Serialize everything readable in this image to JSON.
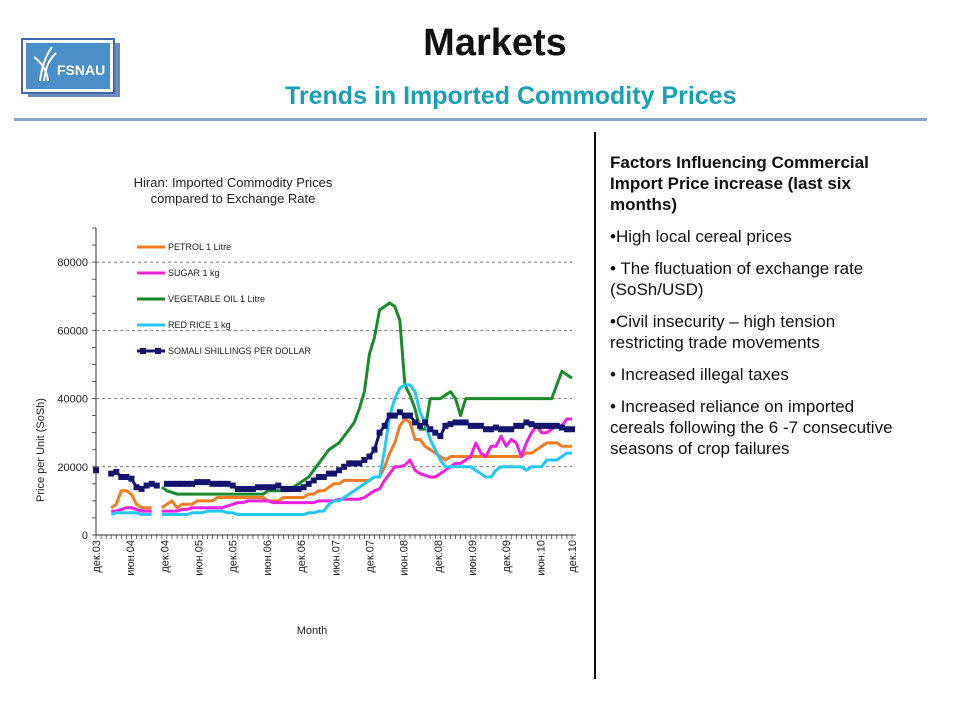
{
  "header": {
    "logo_text": "FSNAU",
    "title": "Markets",
    "subtitle": "Trends in Imported Commodity Prices"
  },
  "sidebar": {
    "heading": "Factors Influencing Commercial Import Price increase (last six months)",
    "factors": [
      "•High local cereal prices",
      "• The fluctuation of exchange rate (SoSh/USD)",
      "•Civil insecurity – high tension restricting trade movements",
      "• Increased  illegal taxes",
      "• Increased reliance on imported cereals following the 6 -7 consecutive seasons of crop failures"
    ]
  },
  "chart_data": {
    "type": "line",
    "title": "Hiran: Imported Commodity Prices compared to Exchange Rate",
    "title_lines": [
      "Hiran: Imported Commodity Prices",
      "compared to Exchange Rate"
    ],
    "xlabel": "Month",
    "ylabel": "Price per Unit (SoSh)",
    "ylim": [
      0,
      90000
    ],
    "yticks": [
      0,
      20000,
      40000,
      60000,
      80000
    ],
    "x_tick_labels": [
      "дек.03",
      "июн.04",
      "дек.04",
      "июн.05",
      "дек.05",
      "июн.06",
      "дек.06",
      "июн.07",
      "дек.07",
      "июн.08",
      "дек.08",
      "июн.09",
      "дек.09",
      "июн.10",
      "дек.10"
    ],
    "grid": "horizontal",
    "legend_position": "upper-left",
    "series": [
      {
        "name": "PETROL 1 Litre",
        "color": "#f07c24",
        "marker": "none",
        "values": [
          null,
          null,
          null,
          8000,
          9000,
          13000,
          13000,
          12000,
          9000,
          8000,
          8000,
          8000,
          null,
          8000,
          9000,
          10000,
          8000,
          9000,
          9000,
          9000,
          10000,
          10000,
          10000,
          10000,
          11000,
          11000,
          11000,
          11000,
          11000,
          11000,
          11000,
          11000,
          11000,
          11000,
          10000,
          10000,
          10000,
          11000,
          11000,
          11000,
          11000,
          11000,
          12000,
          12000,
          13000,
          13000,
          14000,
          15000,
          15000,
          16000,
          16000,
          16000,
          16000,
          16000,
          16000,
          17000,
          17000,
          20000,
          24000,
          27000,
          32000,
          34000,
          33000,
          28000,
          28000,
          26000,
          25000,
          24000,
          23000,
          22000,
          23000,
          23000,
          23000,
          23000,
          23000,
          23000,
          23000,
          23000,
          23000,
          23000,
          23000,
          23000,
          23000,
          23000,
          23000,
          24000,
          24000,
          25000,
          26000,
          27000,
          27000,
          27000,
          26000,
          26000,
          26000
        ]
      },
      {
        "name": "SUGAR 1 kg",
        "color": "#ee22dd",
        "marker": "none",
        "values": [
          null,
          null,
          null,
          7000,
          7000,
          7500,
          8000,
          8000,
          7500,
          7000,
          7000,
          7000,
          null,
          7000,
          7000,
          7000,
          7000,
          7500,
          7500,
          8000,
          8000,
          8000,
          8000,
          8000,
          8000,
          8000,
          8500,
          9000,
          9500,
          9500,
          10000,
          10000,
          10000,
          10000,
          10000,
          9500,
          9500,
          9500,
          9500,
          9500,
          9500,
          9500,
          9500,
          9500,
          10000,
          10000,
          10000,
          10000,
          10500,
          10500,
          10500,
          10500,
          10500,
          11000,
          12000,
          13000,
          13500,
          16000,
          18000,
          20000,
          20000,
          20500,
          22000,
          19000,
          18000,
          17500,
          17000,
          17000,
          18000,
          19000,
          20000,
          21000,
          21000,
          22000,
          23000,
          27000,
          24000,
          23000,
          26000,
          26000,
          29000,
          26000,
          28000,
          27000,
          23000,
          27000,
          30000,
          32000,
          30000,
          30000,
          31000,
          32000,
          32000,
          34000,
          34000
        ]
      },
      {
        "name": "VEGETABLE OIL 1 Litre",
        "color": "#1a8a2a",
        "marker": "none",
        "values": [
          null,
          null,
          null,
          null,
          null,
          null,
          null,
          null,
          null,
          null,
          null,
          null,
          null,
          14000,
          13000,
          12500,
          12000,
          12000,
          12000,
          12000,
          12000,
          12000,
          12000,
          12000,
          12000,
          12000,
          12000,
          12000,
          12000,
          12000,
          12000,
          12000,
          12000,
          12000,
          13000,
          13000,
          13000,
          13000,
          13000,
          14000,
          15000,
          16000,
          17000,
          19000,
          21000,
          23000,
          25000,
          26000,
          27000,
          29000,
          31000,
          33000,
          37000,
          42000,
          53000,
          58000,
          66000,
          67000,
          68000,
          67000,
          63000,
          44000,
          41000,
          37000,
          31000,
          31000,
          40000,
          40000,
          40000,
          41000,
          42000,
          40000,
          35000,
          40000,
          40000,
          40000,
          40000,
          40000,
          40000,
          40000,
          40000,
          40000,
          40000,
          40000,
          40000,
          40000,
          40000,
          40000,
          40000,
          40000,
          40000,
          44000,
          48000,
          47000,
          46000
        ]
      },
      {
        "name": "RED RICE 1 kg",
        "color": "#22c8f0",
        "marker": "none",
        "values": [
          null,
          null,
          null,
          6000,
          6500,
          6500,
          6500,
          6500,
          6500,
          6000,
          6000,
          6000,
          null,
          6000,
          6000,
          6000,
          6000,
          6000,
          6000,
          6500,
          6500,
          6500,
          7000,
          7000,
          7000,
          7000,
          6500,
          6500,
          6000,
          6000,
          6000,
          6000,
          6000,
          6000,
          6000,
          6000,
          6000,
          6000,
          6000,
          6000,
          6000,
          6000,
          6500,
          6500,
          7000,
          7000,
          9000,
          10000,
          10000,
          11000,
          12000,
          13000,
          14000,
          15000,
          16000,
          17000,
          17000,
          25000,
          35000,
          40000,
          43000,
          44000,
          44000,
          42000,
          36000,
          33000,
          28000,
          25000,
          22000,
          20000,
          20000,
          20000,
          20000,
          20000,
          20000,
          19000,
          18000,
          17000,
          17000,
          19000,
          20000,
          20000,
          20000,
          20000,
          20000,
          19000,
          20000,
          20000,
          20000,
          22000,
          22000,
          22000,
          23000,
          24000,
          24000
        ]
      },
      {
        "name": "SOMALI SHILLINGS PER DOLLAR",
        "color": "#14146e",
        "marker": "square",
        "values": [
          19000,
          null,
          null,
          18000,
          18500,
          17000,
          17000,
          16500,
          14000,
          13500,
          14500,
          15000,
          14500,
          null,
          15000,
          15000,
          15000,
          15000,
          15000,
          15000,
          15500,
          15500,
          15500,
          15000,
          15000,
          15000,
          15000,
          14500,
          13500,
          13500,
          13500,
          13500,
          14000,
          14000,
          14000,
          14000,
          14500,
          13500,
          13500,
          13500,
          13500,
          14000,
          15000,
          16000,
          17000,
          17000,
          18000,
          18000,
          19000,
          20000,
          21000,
          21000,
          21000,
          22000,
          23000,
          25000,
          30000,
          32000,
          35000,
          35000,
          36000,
          35000,
          35000,
          33000,
          32000,
          33000,
          31000,
          30000,
          29000,
          32000,
          32500,
          33000,
          33000,
          33000,
          32000,
          32000,
          32000,
          31000,
          31000,
          31500,
          31000,
          31000,
          31000,
          32000,
          32000,
          33000,
          32500,
          32000,
          32000,
          32000,
          32000,
          32000,
          31500,
          31000,
          31000
        ]
      }
    ]
  }
}
